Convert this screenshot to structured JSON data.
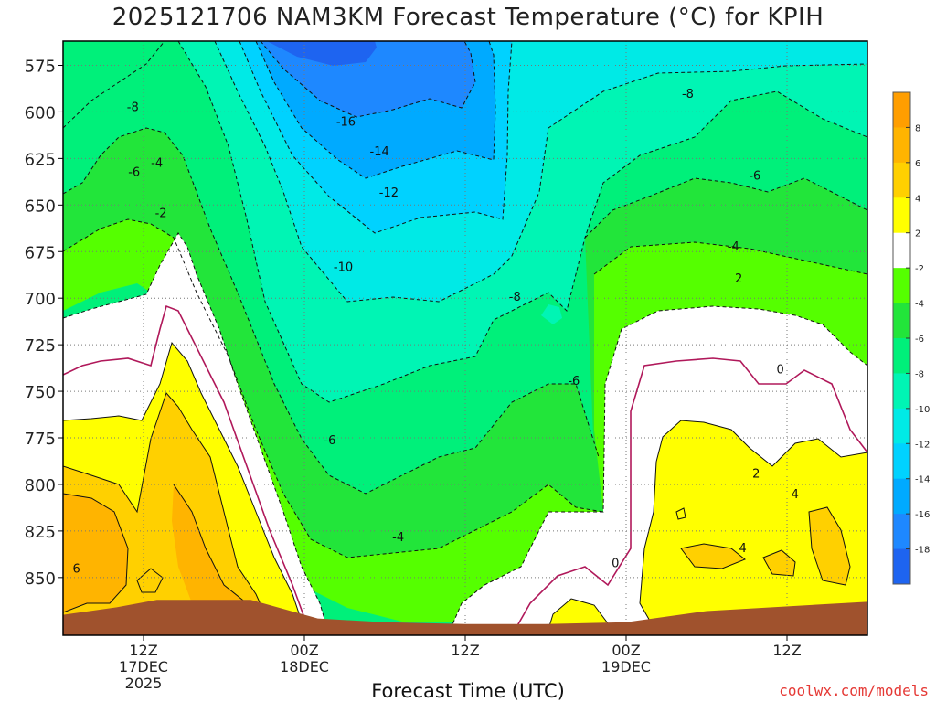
{
  "chart_data": {
    "type": "heatmap",
    "title": "2025121706 NAM3KM Forecast Temperature (°C) for KPIH",
    "xlabel": "Forecast Time (UTC)",
    "ylabel": "",
    "watermark": "coolwx.com/models",
    "x_ticks": [
      {
        "hour": 6,
        "lines": [
          "12Z",
          "17DEC",
          "2025"
        ]
      },
      {
        "hour": 18,
        "lines": [
          "00Z",
          "18DEC"
        ]
      },
      {
        "hour": 30,
        "lines": [
          "12Z"
        ]
      },
      {
        "hour": 42,
        "lines": [
          "00Z",
          "19DEC"
        ]
      },
      {
        "hour": 54,
        "lines": [
          "12Z"
        ]
      }
    ],
    "xlim_hours": [
      0,
      60
    ],
    "y_ticks": [
      575,
      600,
      625,
      650,
      675,
      700,
      725,
      750,
      775,
      800,
      825,
      850
    ],
    "ylim_hPa": [
      562,
      881
    ],
    "colorbar": {
      "levels": [
        8,
        6,
        4,
        2,
        -2,
        -4,
        -6,
        -8,
        -10,
        -12,
        -14,
        -16,
        -18
      ],
      "bands": [
        {
          "min": 8,
          "max": 10,
          "color": "#ff9e00"
        },
        {
          "min": 6,
          "max": 8,
          "color": "#ffb400"
        },
        {
          "min": 4,
          "max": 6,
          "color": "#ffd000"
        },
        {
          "min": 2,
          "max": 4,
          "color": "#ffff00"
        },
        {
          "min": -2,
          "max": 2,
          "color": "#ffffff"
        },
        {
          "min": -4,
          "max": -2,
          "color": "#55ff00"
        },
        {
          "min": -6,
          "max": -4,
          "color": "#22e53a"
        },
        {
          "min": -8,
          "max": -6,
          "color": "#00f07a"
        },
        {
          "min": -10,
          "max": -8,
          "color": "#00f5b4"
        },
        {
          "min": -12,
          "max": -10,
          "color": "#00eae6"
        },
        {
          "min": -14,
          "max": -12,
          "color": "#00d2ff"
        },
        {
          "min": -16,
          "max": -14,
          "color": "#00aaff"
        },
        {
          "min": -18,
          "max": -16,
          "color": "#1e88ff"
        },
        {
          "min": -20,
          "max": -18,
          "color": "#1e64f0"
        }
      ]
    },
    "contour_labels": [
      {
        "text": "-16",
        "hour": 21.1,
        "p": 605
      },
      {
        "text": "-14",
        "hour": 23.6,
        "p": 621
      },
      {
        "text": "-12",
        "hour": 24.3,
        "p": 643
      },
      {
        "text": "-10",
        "hour": 20.9,
        "p": 683
      },
      {
        "text": "-8",
        "hour": 33.7,
        "p": 699
      },
      {
        "text": "-8",
        "hour": 5.2,
        "p": 597
      },
      {
        "text": "-8",
        "hour": 46.6,
        "p": 590
      },
      {
        "text": "-6",
        "hour": 5.3,
        "p": 632
      },
      {
        "text": "-6",
        "hour": 51.6,
        "p": 634
      },
      {
        "text": "-6",
        "hour": 38.1,
        "p": 744
      },
      {
        "text": "-6",
        "hour": 19.9,
        "p": 776
      },
      {
        "text": "-4",
        "hour": 7.0,
        "p": 627
      },
      {
        "text": "-4",
        "hour": 50.0,
        "p": 672
      },
      {
        "text": "-4",
        "hour": 25.0,
        "p": 828
      },
      {
        "text": "-2",
        "hour": 7.3,
        "p": 654
      },
      {
        "text": "2",
        "hour": 50.4,
        "p": 689
      },
      {
        "text": "2",
        "hour": 51.7,
        "p": 794
      },
      {
        "text": "0",
        "hour": 53.5,
        "p": 738
      },
      {
        "text": "0",
        "hour": 41.2,
        "p": 842
      },
      {
        "text": "4",
        "hour": 54.6,
        "p": 805
      },
      {
        "text": "4",
        "hour": 50.7,
        "p": 834
      },
      {
        "text": "6",
        "hour": 1.0,
        "p": 845
      }
    ],
    "surface_pressure_hPa": [
      {
        "hour": 0,
        "p": 870
      },
      {
        "hour": 4,
        "p": 866
      },
      {
        "hour": 7,
        "p": 862
      },
      {
        "hour": 14,
        "p": 862
      },
      {
        "hour": 19,
        "p": 872
      },
      {
        "hour": 24,
        "p": 874
      },
      {
        "hour": 30,
        "p": 875
      },
      {
        "hour": 36,
        "p": 875
      },
      {
        "hour": 42,
        "p": 874
      },
      {
        "hour": 48,
        "p": 868
      },
      {
        "hour": 60,
        "p": 863
      }
    ],
    "colors": {
      "terrain": "#a0522d",
      "freezing_line": "#b0185a",
      "contour": "#111111"
    }
  }
}
